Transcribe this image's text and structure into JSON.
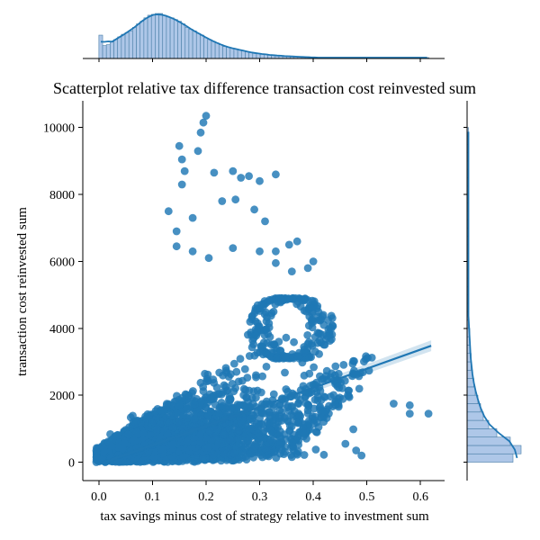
{
  "chart_data": {
    "type": "scatter",
    "title": "Scatterplot relative tax difference transaction cost reinvested sum",
    "xlabel": "tax savings minus cost of strategy relative to investment sum",
    "ylabel": "transaction cost reinvested sum",
    "xlim": [
      -0.03,
      0.645
    ],
    "ylim": [
      -550,
      10800
    ],
    "xticks": [
      0.0,
      0.1,
      0.2,
      0.3,
      0.4,
      0.5,
      0.6
    ],
    "xtick_labels": [
      "0.0",
      "0.1",
      "0.2",
      "0.3",
      "0.4",
      "0.5",
      "0.6"
    ],
    "yticks": [
      0,
      2000,
      4000,
      6000,
      8000,
      10000
    ],
    "ytick_labels": [
      "0",
      "2000",
      "4000",
      "6000",
      "8000",
      "10000"
    ],
    "grid": false,
    "colors": {
      "points": "#1f77b4",
      "regression_line": "#1f77b4",
      "hist_fill": "#aec7e8",
      "hist_edge": "#4a7fa8",
      "kde": "#1f77b4"
    },
    "regression_line": {
      "x": [
        0.0,
        0.62
      ],
      "y": [
        -60,
        3480
      ]
    },
    "outliers": [
      {
        "x": 0.2,
        "y": 10350
      },
      {
        "x": 0.195,
        "y": 10150
      },
      {
        "x": 0.19,
        "y": 9850
      },
      {
        "x": 0.15,
        "y": 9450
      },
      {
        "x": 0.155,
        "y": 9050
      },
      {
        "x": 0.185,
        "y": 9300
      },
      {
        "x": 0.215,
        "y": 8650
      },
      {
        "x": 0.25,
        "y": 8700
      },
      {
        "x": 0.28,
        "y": 8550
      },
      {
        "x": 0.33,
        "y": 8600
      },
      {
        "x": 0.3,
        "y": 8400
      },
      {
        "x": 0.265,
        "y": 8500
      },
      {
        "x": 0.16,
        "y": 8700
      },
      {
        "x": 0.155,
        "y": 8300
      },
      {
        "x": 0.13,
        "y": 7500
      },
      {
        "x": 0.145,
        "y": 6900
      },
      {
        "x": 0.175,
        "y": 7300
      },
      {
        "x": 0.23,
        "y": 7800
      },
      {
        "x": 0.255,
        "y": 7850
      },
      {
        "x": 0.29,
        "y": 7550
      },
      {
        "x": 0.31,
        "y": 7200
      },
      {
        "x": 0.145,
        "y": 6450
      },
      {
        "x": 0.205,
        "y": 6100
      },
      {
        "x": 0.175,
        "y": 6300
      },
      {
        "x": 0.25,
        "y": 6400
      },
      {
        "x": 0.3,
        "y": 6300
      },
      {
        "x": 0.37,
        "y": 6600
      },
      {
        "x": 0.33,
        "y": 6300
      },
      {
        "x": 0.355,
        "y": 6500
      },
      {
        "x": 0.36,
        "y": 5700
      },
      {
        "x": 0.39,
        "y": 5800
      },
      {
        "x": 0.4,
        "y": 6000
      },
      {
        "x": 0.33,
        "y": 5950
      },
      {
        "x": 0.55,
        "y": 1750
      },
      {
        "x": 0.58,
        "y": 1700
      },
      {
        "x": 0.58,
        "y": 1450
      },
      {
        "x": 0.615,
        "y": 1450
      },
      {
        "x": 0.49,
        "y": 200
      },
      {
        "x": 0.48,
        "y": 350
      },
      {
        "x": 0.46,
        "y": 550
      },
      {
        "x": 0.41,
        "y": 1050
      },
      {
        "x": 0.39,
        "y": 1550
      }
    ],
    "marginal_x": {
      "bin_width": 0.007,
      "bin_start": 0.0,
      "counts": [
        27,
        15,
        16,
        19,
        22,
        25,
        28,
        30,
        32,
        36,
        40,
        43,
        47,
        50,
        51,
        52,
        52,
        50,
        48,
        47,
        45,
        43,
        40,
        36,
        34,
        32,
        29,
        27,
        24,
        22,
        20,
        18,
        16,
        14,
        13,
        12,
        11,
        10,
        9,
        8,
        7,
        6,
        6,
        5,
        5,
        4,
        4,
        3,
        3,
        3,
        3,
        2,
        2,
        2,
        2,
        2,
        1,
        1,
        1,
        1,
        1,
        1,
        1,
        1,
        1,
        1,
        1,
        1,
        1,
        1,
        1,
        1,
        1,
        1,
        1,
        1,
        1,
        1,
        1,
        1,
        1,
        1,
        1,
        1,
        1,
        1,
        1,
        1
      ]
    },
    "marginal_y": {
      "bin_width": 250,
      "bin_start": 0,
      "counts": [
        34,
        40,
        32,
        22,
        16,
        12,
        10,
        8,
        6,
        5,
        4,
        3,
        3,
        2,
        2,
        2,
        1,
        1,
        1,
        1,
        1,
        1,
        1,
        1,
        1,
        1,
        1,
        1,
        1,
        1,
        1,
        1,
        1,
        1,
        1,
        1,
        1,
        1,
        1,
        1
      ]
    }
  }
}
